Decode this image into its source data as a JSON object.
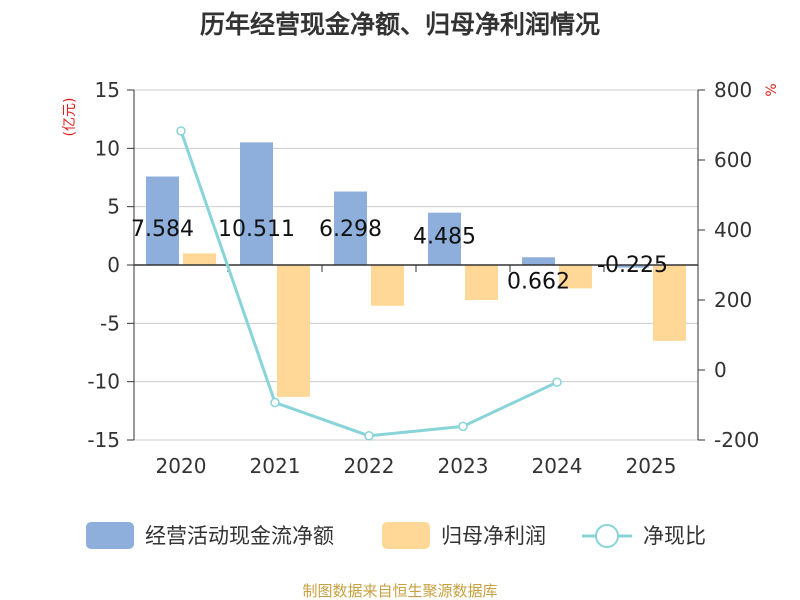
{
  "chart_data": {
    "type": "bar",
    "title": "历年经营现金净额、归母净利润情况",
    "categories": [
      "2020",
      "2021",
      "2022",
      "2023",
      "2024",
      "2025"
    ],
    "series": [
      {
        "name": "经营活动现金流净额",
        "type": "bar",
        "axis": "left",
        "color": "#8eaedb",
        "values": [
          7.584,
          10.511,
          6.298,
          4.485,
          0.662,
          -0.225
        ]
      },
      {
        "name": "归母净利润",
        "type": "bar",
        "axis": "left",
        "color": "#ffd898",
        "values": [
          1.0,
          -11.3,
          -3.5,
          -3.0,
          -2.0,
          -6.5
        ]
      },
      {
        "name": "净现比",
        "type": "line",
        "axis": "right",
        "color": "#88d4d8",
        "values": [
          683,
          -93,
          -188,
          -161,
          -35,
          null
        ]
      }
    ],
    "data_labels": [
      "7.584",
      "10.511",
      "6.298",
      "4.485",
      "0.662",
      "-0.225"
    ],
    "y_left": {
      "label": "(亿元)",
      "min": -15,
      "max": 15,
      "ticks": [
        "15",
        "10",
        "5",
        "0",
        "-5",
        "-10",
        "-15"
      ]
    },
    "y_right": {
      "label": "%",
      "min": -200,
      "max": 800,
      "ticks": [
        "800",
        "600",
        "400",
        "200",
        "0",
        "-200"
      ]
    },
    "legend": {
      "placement": "bottom",
      "items": [
        "经营活动现金流净额",
        "归母净利润",
        "净现比"
      ]
    },
    "source": "制图数据来自恒生聚源数据库",
    "colors": {
      "axis": "#333333",
      "grid": "#cccccc",
      "unit": "#e02020",
      "source": "#c8a040"
    }
  }
}
